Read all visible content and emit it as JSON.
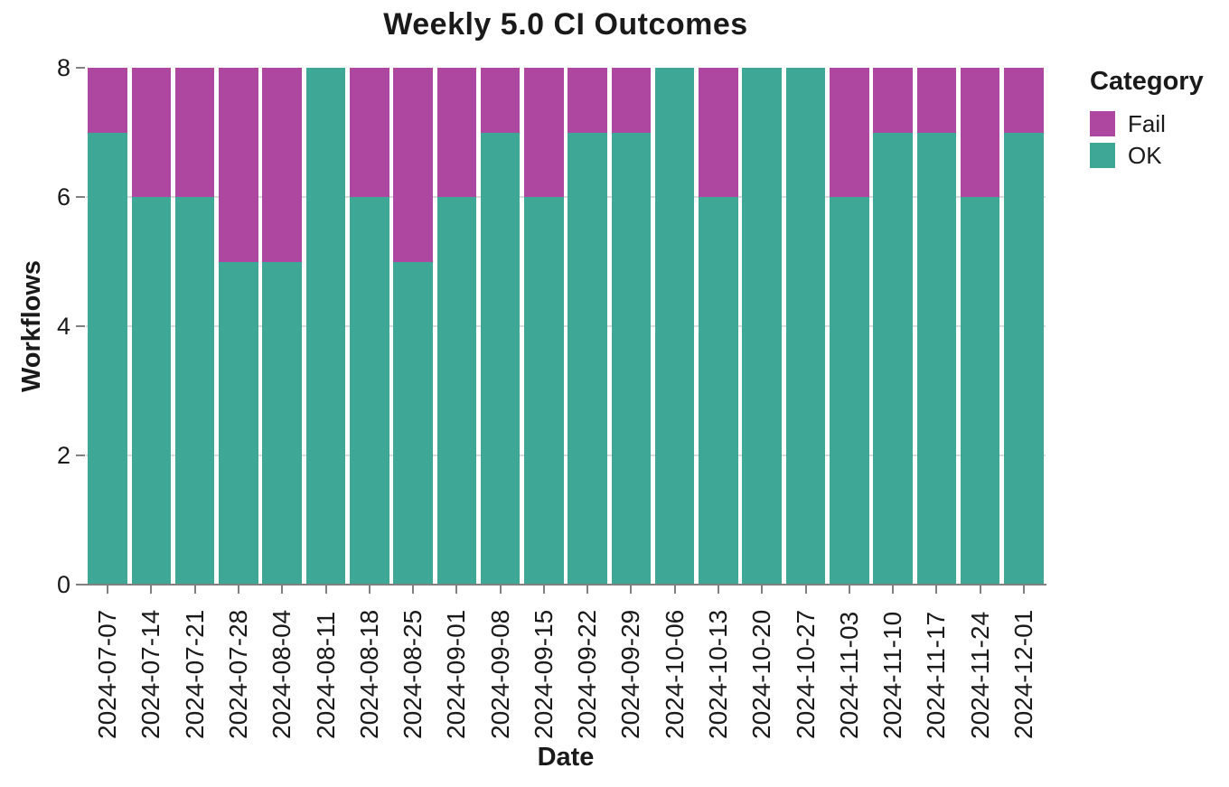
{
  "title": "Weekly 5.0 CI Outcomes",
  "axes": {
    "x_label": "Date",
    "y_label": "Workflows",
    "y_ticks": [
      0,
      2,
      4,
      6,
      8
    ],
    "y_gridlines": [
      2,
      4,
      6
    ]
  },
  "legend": {
    "title": "Category",
    "items": [
      {
        "label": "Fail",
        "color": "#ad47a0"
      },
      {
        "label": "OK",
        "color": "#3ea795"
      }
    ]
  },
  "colors": {
    "fail": "#ad47a0",
    "ok": "#3ea795",
    "axis_line": "#808080",
    "gridline": "#dcdcdc",
    "text": "#1a1a1a"
  },
  "chart_data": {
    "type": "bar",
    "stacked": true,
    "title": "Weekly 5.0 CI Outcomes",
    "xlabel": "Date",
    "ylabel": "Workflows",
    "ylim": [
      0,
      8
    ],
    "grid": true,
    "legend_position": "right",
    "categories": [
      "2024-07-07",
      "2024-07-14",
      "2024-07-21",
      "2024-07-28",
      "2024-08-04",
      "2024-08-11",
      "2024-08-18",
      "2024-08-25",
      "2024-09-01",
      "2024-09-08",
      "2024-09-15",
      "2024-09-22",
      "2024-09-29",
      "2024-10-06",
      "2024-10-13",
      "2024-10-20",
      "2024-10-27",
      "2024-11-03",
      "2024-11-10",
      "2024-11-17",
      "2024-11-24",
      "2024-12-01"
    ],
    "series": [
      {
        "name": "OK",
        "color": "#3ea795",
        "values": [
          7,
          6,
          6,
          5,
          5,
          8,
          6,
          5,
          6,
          7,
          6,
          7,
          7,
          8,
          6,
          8,
          8,
          6,
          7,
          7,
          6,
          7
        ]
      },
      {
        "name": "Fail",
        "color": "#ad47a0",
        "values": [
          1,
          2,
          2,
          3,
          3,
          0,
          2,
          3,
          2,
          1,
          2,
          1,
          1,
          0,
          2,
          0,
          0,
          2,
          1,
          1,
          2,
          1
        ]
      }
    ]
  }
}
